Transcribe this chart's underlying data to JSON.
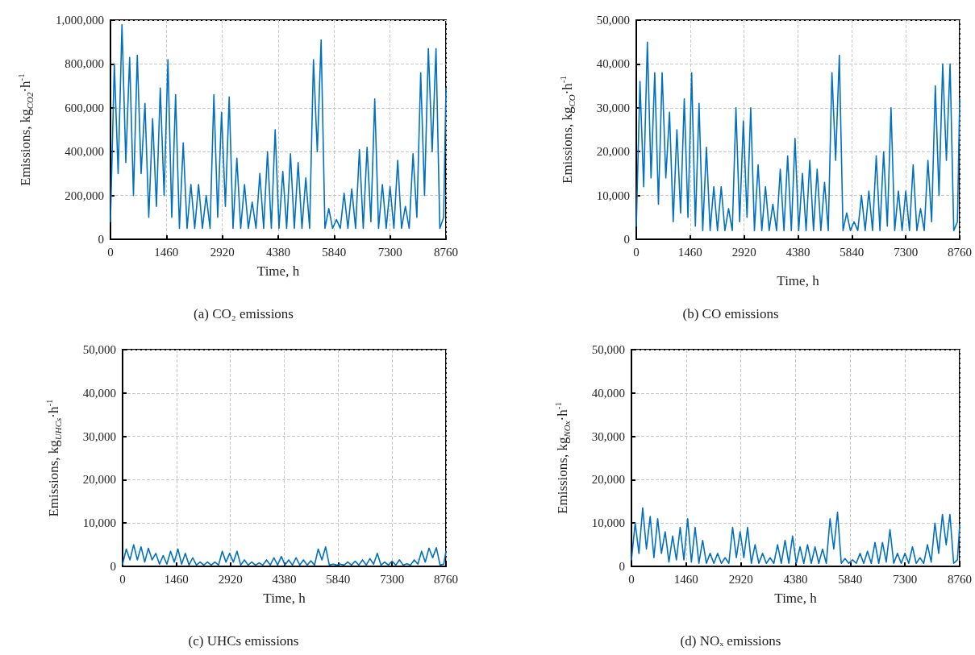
{
  "chart_data": [
    {
      "type": "line",
      "annotations": [
        "(a) CO₂ emissions"
      ],
      "xlabel": "Time, h",
      "ylabel": "Emissions, kg$_{CO2}$·h$^{-1}$",
      "grid": true,
      "xlim": [
        0,
        8760
      ],
      "xticks": [
        0,
        1460,
        2920,
        4380,
        5840,
        7300,
        8760
      ],
      "ylim": [
        0,
        1000000
      ],
      "yticks": [
        {
          "value": 0,
          "label": "0"
        },
        {
          "value": 200000,
          "label": "200,000"
        },
        {
          "value": 400000,
          "label": "400,000"
        },
        {
          "value": 600000,
          "label": "600,000"
        },
        {
          "value": 800000,
          "label": "800,000"
        },
        {
          "value": 1000000,
          "label": "1,000,000"
        }
      ],
      "x": [
        0,
        100,
        200,
        300,
        400,
        500,
        600,
        700,
        800,
        900,
        1000,
        1100,
        1200,
        1300,
        1400,
        1500,
        1600,
        1700,
        1800,
        1900,
        2000,
        2100,
        2200,
        2300,
        2400,
        2500,
        2600,
        2700,
        2800,
        2900,
        3000,
        3100,
        3200,
        3300,
        3400,
        3500,
        3600,
        3700,
        3800,
        3900,
        4000,
        4100,
        4200,
        4300,
        4400,
        4500,
        4600,
        4700,
        4800,
        4900,
        5000,
        5100,
        5200,
        5300,
        5400,
        5500,
        5600,
        5700,
        5800,
        5900,
        6000,
        6100,
        6200,
        6300,
        6400,
        6500,
        6600,
        6700,
        6800,
        6900,
        7000,
        7100,
        7200,
        7300,
        7400,
        7500,
        7600,
        7700,
        7800,
        7900,
        8000,
        8100,
        8200,
        8300,
        8400,
        8500,
        8600,
        8700,
        8760
      ],
      "series": [
        {
          "color": "#0070c0",
          "values": [
            80000,
            800000,
            300000,
            980000,
            350000,
            830000,
            200000,
            840000,
            300000,
            620000,
            100000,
            550000,
            150000,
            690000,
            200000,
            820000,
            100000,
            660000,
            50000,
            440000,
            50000,
            250000,
            50000,
            250000,
            50000,
            200000,
            50000,
            660000,
            100000,
            580000,
            150000,
            650000,
            50000,
            370000,
            50000,
            250000,
            50000,
            170000,
            50000,
            300000,
            50000,
            400000,
            50000,
            500000,
            50000,
            310000,
            50000,
            390000,
            50000,
            350000,
            50000,
            280000,
            50000,
            820000,
            400000,
            910000,
            50000,
            140000,
            50000,
            90000,
            50000,
            210000,
            50000,
            230000,
            50000,
            410000,
            50000,
            420000,
            80000,
            640000,
            50000,
            250000,
            50000,
            240000,
            50000,
            360000,
            50000,
            150000,
            50000,
            390000,
            100000,
            760000,
            200000,
            870000,
            400000,
            870000,
            50000,
            100000,
            690000
          ]
        }
      ]
    },
    {
      "type": "line",
      "annotations": [
        "(b) CO emissions"
      ],
      "xlabel": "Time, h",
      "ylabel": "Emissions, kg$_{CO}$·h$^{-1}$",
      "grid": true,
      "xlim": [
        0,
        8760
      ],
      "xticks": [
        0,
        1460,
        2920,
        4380,
        5840,
        7300,
        8760
      ],
      "ylim": [
        0,
        50000
      ],
      "yticks": [
        {
          "value": 0,
          "label": "0"
        },
        {
          "value": 10000,
          "label": "10,000"
        },
        {
          "value": 20000,
          "label": "20,000"
        },
        {
          "value": 30000,
          "label": "30,000"
        },
        {
          "value": 40000,
          "label": "40,000"
        },
        {
          "value": 50000,
          "label": "50,000"
        }
      ],
      "x": [
        0,
        100,
        200,
        300,
        400,
        500,
        600,
        700,
        800,
        900,
        1000,
        1100,
        1200,
        1300,
        1400,
        1500,
        1600,
        1700,
        1800,
        1900,
        2000,
        2100,
        2200,
        2300,
        2400,
        2500,
        2600,
        2700,
        2800,
        2900,
        3000,
        3100,
        3200,
        3300,
        3400,
        3500,
        3600,
        3700,
        3800,
        3900,
        4000,
        4100,
        4200,
        4300,
        4400,
        4500,
        4600,
        4700,
        4800,
        4900,
        5000,
        5100,
        5200,
        5300,
        5400,
        5500,
        5600,
        5700,
        5800,
        5900,
        6000,
        6100,
        6200,
        6300,
        6400,
        6500,
        6600,
        6700,
        6800,
        6900,
        7000,
        7100,
        7200,
        7300,
        7400,
        7500,
        7600,
        7700,
        7800,
        7900,
        8000,
        8100,
        8200,
        8300,
        8400,
        8500,
        8600,
        8700,
        8760
      ],
      "series": [
        {
          "color": "#0070c0",
          "values": [
            3000,
            36000,
            12000,
            45000,
            14000,
            38000,
            8000,
            38000,
            14000,
            29000,
            4000,
            25000,
            6000,
            32000,
            5000,
            38000,
            3000,
            31000,
            2000,
            21000,
            2000,
            12000,
            2000,
            12000,
            2000,
            7000,
            2000,
            30000,
            4000,
            27000,
            5000,
            30000,
            2000,
            17000,
            2000,
            12000,
            2000,
            8000,
            2000,
            16000,
            2000,
            19000,
            2000,
            23000,
            2000,
            15000,
            2000,
            18000,
            2000,
            16000,
            2000,
            13000,
            2000,
            38000,
            18000,
            42000,
            2000,
            6000,
            2000,
            4000,
            2000,
            10000,
            2000,
            11000,
            2000,
            19000,
            2000,
            20000,
            3000,
            30000,
            2000,
            11000,
            2000,
            11000,
            2000,
            17000,
            2000,
            7000,
            2000,
            18000,
            4000,
            35000,
            10000,
            40000,
            18000,
            40000,
            2000,
            4000,
            32000
          ]
        }
      ]
    },
    {
      "type": "line",
      "annotations": [
        "(c) UHCs emissions"
      ],
      "xlabel": "Time, h",
      "ylabel": "Emissions, kg$_{UHCs}$·h$^{-1}$",
      "grid": true,
      "xlim": [
        0,
        8760
      ],
      "xticks": [
        0,
        1460,
        2920,
        4380,
        5840,
        7300,
        8760
      ],
      "ylim": [
        0,
        50000
      ],
      "yticks": [
        {
          "value": 0,
          "label": "0"
        },
        {
          "value": 10000,
          "label": "10,000"
        },
        {
          "value": 20000,
          "label": "20,000"
        },
        {
          "value": 30000,
          "label": "30,000"
        },
        {
          "value": 40000,
          "label": "40,000"
        },
        {
          "value": 50000,
          "label": "50,000"
        }
      ],
      "x": [
        0,
        100,
        200,
        300,
        400,
        500,
        600,
        700,
        800,
        900,
        1000,
        1100,
        1200,
        1300,
        1400,
        1500,
        1600,
        1700,
        1800,
        1900,
        2000,
        2100,
        2200,
        2300,
        2400,
        2500,
        2600,
        2700,
        2800,
        2900,
        3000,
        3100,
        3200,
        3300,
        3400,
        3500,
        3600,
        3700,
        3800,
        3900,
        4000,
        4100,
        4200,
        4300,
        4400,
        4500,
        4600,
        4700,
        4800,
        4900,
        5000,
        5100,
        5200,
        5300,
        5400,
        5500,
        5600,
        5700,
        5800,
        5900,
        6000,
        6100,
        6200,
        6300,
        6400,
        6500,
        6600,
        6700,
        6800,
        6900,
        7000,
        7100,
        7200,
        7300,
        7400,
        7500,
        7600,
        7700,
        7800,
        7900,
        8000,
        8100,
        8200,
        8300,
        8400,
        8500,
        8600,
        8700,
        8760
      ],
      "series": [
        {
          "color": "#0070c0",
          "values": [
            500,
            4000,
            1500,
            5000,
            1500,
            4500,
            1000,
            4200,
            1500,
            3000,
            500,
            2500,
            500,
            3500,
            1000,
            4000,
            500,
            3000,
            300,
            2000,
            300,
            1000,
            300,
            1000,
            300,
            1000,
            300,
            3500,
            1000,
            3000,
            1000,
            3500,
            300,
            1500,
            300,
            1000,
            300,
            800,
            300,
            1500,
            300,
            2000,
            300,
            2300,
            300,
            1500,
            300,
            2000,
            300,
            1500,
            300,
            1300,
            300,
            4000,
            1500,
            4500,
            300,
            500,
            300,
            500,
            300,
            1000,
            300,
            1200,
            300,
            1500,
            300,
            1800,
            500,
            3000,
            300,
            1000,
            300,
            1200,
            300,
            1500,
            300,
            600,
            300,
            1500,
            500,
            3500,
            1000,
            4200,
            2000,
            4300,
            300,
            500,
            3500
          ]
        }
      ]
    },
    {
      "type": "line",
      "annotations": [
        "(d) NOₓ emissions"
      ],
      "xlabel": "Time, h",
      "ylabel": "Emissions, kg$_{NOx}$·h$^{-1}$",
      "grid": true,
      "xlim": [
        0,
        8760
      ],
      "xticks": [
        0,
        1460,
        2920,
        4380,
        5840,
        7300,
        8760
      ],
      "ylim": [
        0,
        50000
      ],
      "yticks": [
        {
          "value": 0,
          "label": "0"
        },
        {
          "value": 10000,
          "label": "10,000"
        },
        {
          "value": 20000,
          "label": "20,000"
        },
        {
          "value": 30000,
          "label": "30,000"
        },
        {
          "value": 40000,
          "label": "40,000"
        },
        {
          "value": 50000,
          "label": "50,000"
        }
      ],
      "x": [
        0,
        100,
        200,
        300,
        400,
        500,
        600,
        700,
        800,
        900,
        1000,
        1100,
        1200,
        1300,
        1400,
        1500,
        1600,
        1700,
        1800,
        1900,
        2000,
        2100,
        2200,
        2300,
        2400,
        2500,
        2600,
        2700,
        2800,
        2900,
        3000,
        3100,
        3200,
        3300,
        3400,
        3500,
        3600,
        3700,
        3800,
        3900,
        4000,
        4100,
        4200,
        4300,
        4400,
        4500,
        4600,
        4700,
        4800,
        4900,
        5000,
        5100,
        5200,
        5300,
        5400,
        5500,
        5600,
        5700,
        5800,
        5900,
        6000,
        6100,
        6200,
        6300,
        6400,
        6500,
        6600,
        6700,
        6800,
        6900,
        7000,
        7100,
        7200,
        7300,
        7400,
        7500,
        7600,
        7700,
        7800,
        7900,
        8000,
        8100,
        8200,
        8300,
        8400,
        8500,
        8600,
        8700,
        8760
      ],
      "series": [
        {
          "color": "#0070c0",
          "values": [
            1500,
            10000,
            3000,
            13500,
            4000,
            11500,
            2000,
            11000,
            3000,
            8000,
            1000,
            7000,
            1500,
            9000,
            1500,
            11000,
            1000,
            9000,
            700,
            6000,
            700,
            3000,
            700,
            3000,
            700,
            2000,
            700,
            9000,
            2000,
            8000,
            2000,
            9000,
            700,
            5000,
            700,
            3000,
            700,
            2000,
            700,
            5000,
            700,
            6000,
            700,
            7000,
            700,
            4500,
            700,
            5000,
            700,
            4500,
            700,
            4000,
            700,
            11000,
            4000,
            12500,
            700,
            1800,
            700,
            1500,
            700,
            3000,
            700,
            3500,
            700,
            5500,
            700,
            5500,
            1000,
            8500,
            700,
            3000,
            700,
            3000,
            700,
            4500,
            700,
            2000,
            700,
            5000,
            1000,
            10000,
            3000,
            12000,
            5000,
            12000,
            700,
            1500,
            9500
          ]
        }
      ]
    }
  ]
}
